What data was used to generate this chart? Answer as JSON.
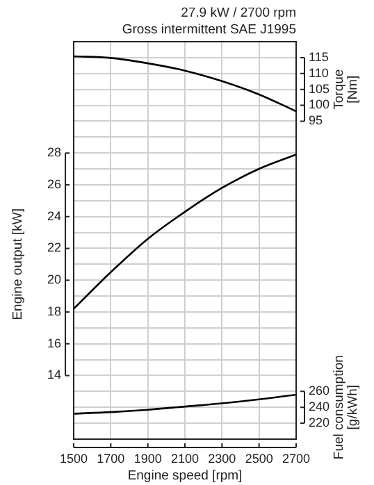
{
  "chart_data": {
    "type": "line",
    "title": "27.9 kW / 2700 rpm",
    "subtitle": "Gross intermittent SAE J1995",
    "xlabel": "Engine speed [rpm]",
    "ylabel": "Engine output [kW]",
    "y2label": "Torque [Nm]",
    "y3label": "Fuel consumption [g/kWh]",
    "x": [
      1500,
      1700,
      1900,
      2100,
      2300,
      2500,
      2700
    ],
    "xlim": [
      1500,
      2700
    ],
    "xticks": [
      1500,
      1700,
      1900,
      2100,
      2300,
      2500,
      2700
    ],
    "ylim": [
      10,
      35
    ],
    "yticks": [
      {
        "value": 11,
        "label": null
      },
      {
        "value": 12,
        "label": null
      },
      {
        "value": 13,
        "label": null
      },
      14,
      {
        "value": 15,
        "label": null
      },
      16,
      {
        "value": 17,
        "label": null
      },
      18,
      {
        "value": 19,
        "label": null
      },
      20,
      {
        "value": 21,
        "label": null
      },
      22,
      {
        "value": 23,
        "label": null
      },
      24,
      {
        "value": 25,
        "label": null
      },
      26,
      {
        "value": 27,
        "label": null
      },
      28,
      {
        "value": 29,
        "label": null
      },
      {
        "value": 30,
        "label": null
      },
      {
        "value": 31,
        "label": null
      },
      {
        "value": 32,
        "label": null
      },
      {
        "value": 33,
        "label": null
      },
      {
        "value": 34,
        "label": null
      }
    ],
    "y2lim": [
      -5,
      120
    ],
    "y2ticks": [
      95,
      100,
      105,
      110,
      115
    ],
    "y3lim": [
      200,
      700
    ],
    "y3ticks": [
      220,
      240,
      260
    ],
    "series": [
      {
        "color": "#000000",
        "values": [
          115.4,
          114.9,
          113.2,
          110.9,
          107.6,
          103.4,
          98.1
        ],
        "axis": "y2"
      },
      {
        "color": "#000000",
        "values": [
          18.2,
          20.5,
          22.6,
          24.3,
          25.8,
          27.0,
          27.9
        ]
      },
      {
        "color": "#000000",
        "values": [
          232,
          234,
          237,
          241,
          245,
          250,
          256
        ],
        "axis": "y3"
      }
    ],
    "grid": true,
    "legend": false,
    "marker": "none",
    "line_style": "solid"
  }
}
